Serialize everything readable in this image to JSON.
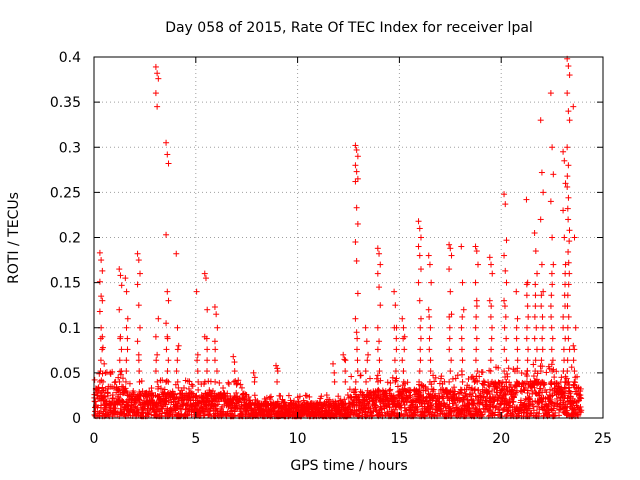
{
  "chart_data": {
    "type": "scatter",
    "title": "Day 058 of 2015, Rate Of TEC Index for receiver lpal",
    "xlabel": "GPS time / hours",
    "ylabel": "ROTI / TECUs",
    "xlim": [
      0,
      25
    ],
    "ylim": [
      0,
      0.4
    ],
    "x_ticks": [
      0,
      5,
      10,
      15,
      20,
      25
    ],
    "x_tick_labels": [
      "0",
      "5",
      "10",
      "15",
      "20",
      "25"
    ],
    "y_ticks": [
      0,
      0.05,
      0.1,
      0.15,
      0.2,
      0.25,
      0.3,
      0.35,
      0.4
    ],
    "y_tick_labels": [
      "0",
      "0.05",
      "0.1",
      "0.15",
      "0.2",
      "0.25",
      "0.3",
      "0.35",
      "0.4"
    ],
    "grid": true,
    "marker": "+",
    "color": "#ff0000",
    "series": [
      {
        "name": "ROTI",
        "peaks": [
          {
            "x": 0.35,
            "values": [
              0.183,
              0.175,
              0.163,
              0.151,
              0.135,
              0.13,
              0.118,
              0.1,
              0.09
            ]
          },
          {
            "x": 0.5,
            "values": [
              0.078,
              0.06,
              0.05
            ]
          },
          {
            "x": 1.3,
            "values": [
              0.165,
              0.158,
              0.147,
              0.12,
              0.09
            ]
          },
          {
            "x": 1.6,
            "values": [
              0.155,
              0.14,
              0.11
            ]
          },
          {
            "x": 2.2,
            "values": [
              0.182,
              0.175,
              0.16,
              0.148,
              0.125,
              0.1,
              0.085,
              0.07
            ]
          },
          {
            "x": 3.1,
            "values": [
              0.389,
              0.382,
              0.376,
              0.36,
              0.345,
              0.11,
              0.09,
              0.07
            ]
          },
          {
            "x": 3.6,
            "values": [
              0.305,
              0.292,
              0.282,
              0.203,
              0.14,
              0.13,
              0.105,
              0.09
            ]
          },
          {
            "x": 4.1,
            "values": [
              0.182,
              0.1,
              0.08
            ]
          },
          {
            "x": 5.1,
            "values": [
              0.14,
              0.07
            ]
          },
          {
            "x": 5.5,
            "values": [
              0.16,
              0.155,
              0.12,
              0.09
            ]
          },
          {
            "x": 6.0,
            "values": [
              0.123,
              0.115,
              0.1,
              0.085
            ]
          },
          {
            "x": 6.9,
            "values": [
              0.068,
              0.062
            ]
          },
          {
            "x": 7.9,
            "values": [
              0.05,
              0.045
            ]
          },
          {
            "x": 9.0,
            "values": [
              0.058,
              0.055
            ]
          },
          {
            "x": 11.8,
            "values": [
              0.06,
              0.05
            ]
          },
          {
            "x": 12.3,
            "values": [
              0.07,
              0.065
            ]
          },
          {
            "x": 12.9,
            "values": [
              0.302,
              0.297,
              0.29,
              0.28,
              0.273,
              0.265,
              0.262,
              0.233,
              0.215,
              0.195,
              0.174,
              0.138,
              0.11,
              0.095
            ]
          },
          {
            "x": 13.4,
            "values": [
              0.1,
              0.085,
              0.07
            ]
          },
          {
            "x": 14.0,
            "values": [
              0.188,
              0.182,
              0.17,
              0.16,
              0.145,
              0.125,
              0.1,
              0.085
            ]
          },
          {
            "x": 14.8,
            "values": [
              0.14,
              0.125,
              0.1
            ]
          },
          {
            "x": 15.2,
            "values": [
              0.11,
              0.1,
              0.09
            ]
          },
          {
            "x": 16.0,
            "values": [
              0.218,
              0.21,
              0.2,
              0.19,
              0.18,
              0.165,
              0.15,
              0.13,
              0.11
            ]
          },
          {
            "x": 16.5,
            "values": [
              0.18,
              0.17,
              0.15,
              0.12
            ]
          },
          {
            "x": 17.5,
            "values": [
              0.192,
              0.188,
              0.18,
              0.165,
              0.14,
              0.115
            ]
          },
          {
            "x": 18.1,
            "values": [
              0.19,
              0.15,
              0.12
            ]
          },
          {
            "x": 18.8,
            "values": [
              0.19,
              0.185,
              0.17,
              0.15,
              0.13
            ]
          },
          {
            "x": 19.5,
            "values": [
              0.178,
              0.17,
              0.16,
              0.13
            ]
          },
          {
            "x": 20.2,
            "values": [
              0.248,
              0.237,
              0.197,
              0.18,
              0.163,
              0.15,
              0.13
            ]
          },
          {
            "x": 20.8,
            "values": [
              0.14,
              0.11
            ]
          },
          {
            "x": 21.3,
            "values": [
              0.242,
              0.15
            ]
          },
          {
            "x": 21.7,
            "values": [
              0.205,
              0.185,
              0.16
            ]
          },
          {
            "x": 22.0,
            "values": [
              0.33,
              0.272,
              0.25,
              0.22,
              0.17,
              0.14
            ]
          },
          {
            "x": 22.5,
            "values": [
              0.36,
              0.3,
              0.27,
              0.24,
              0.2,
              0.17
            ]
          },
          {
            "x": 23.1,
            "values": [
              0.295,
              0.285,
              0.26,
              0.23,
              0.2,
              0.17
            ]
          },
          {
            "x": 23.3,
            "values": [
              0.398,
              0.39,
              0.38,
              0.36,
              0.34,
              0.33,
              0.3,
              0.28
            ]
          },
          {
            "x": 23.6,
            "values": [
              0.345,
              0.2,
              0.1,
              0.08
            ]
          }
        ]
      }
    ]
  }
}
